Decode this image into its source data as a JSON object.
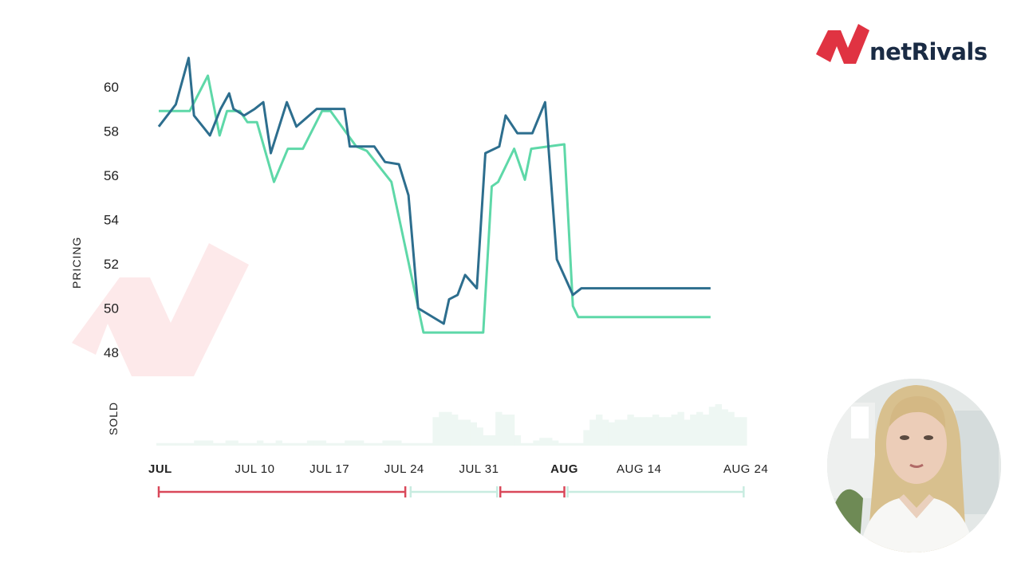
{
  "logo": {
    "text": "netRivals",
    "mark": "netrivals-n-logo",
    "mark_color": "#e03342",
    "text_color": "#1a2b44"
  },
  "presenter": {
    "icon": "presenter-video-avatar"
  },
  "colors": {
    "series_1": "#2d6e8e",
    "series_2": "#5ed8a8",
    "sold_bars": "#eef7f3",
    "range_red": "#d9485a",
    "range_green": "#c8ece0",
    "watermark": "#fde9ea"
  },
  "chart_data": {
    "type": "line",
    "ylabel": "PRICING",
    "ylim": [
      47.5,
      61
    ],
    "yticks": [
      48,
      50,
      52,
      54,
      56,
      58,
      60
    ],
    "xlim": [
      0,
      55
    ],
    "xticks": [
      {
        "label": "JUL",
        "x": 0,
        "bold": true
      },
      {
        "label": "JUL 10",
        "x": 9,
        "bold": false
      },
      {
        "label": "JUL 17",
        "x": 16,
        "bold": false
      },
      {
        "label": "JUL 24",
        "x": 23,
        "bold": false
      },
      {
        "label": "JUL 31",
        "x": 30,
        "bold": false
      },
      {
        "label": "AUG",
        "x": 38,
        "bold": true
      },
      {
        "label": "AUG 14",
        "x": 45,
        "bold": false
      },
      {
        "label": "AUG 24",
        "x": 55,
        "bold": false
      }
    ],
    "grid": false,
    "series": [
      {
        "color": "#2d6e8e",
        "points": [
          [
            0,
            58.2
          ],
          [
            1.6,
            59.2
          ],
          [
            2.8,
            61.3
          ],
          [
            3.3,
            58.7
          ],
          [
            4.8,
            57.8
          ],
          [
            5.8,
            59.0
          ],
          [
            6.6,
            59.7
          ],
          [
            7.0,
            59.0
          ],
          [
            8.0,
            58.7
          ],
          [
            9.0,
            59.0
          ],
          [
            9.8,
            59.3
          ],
          [
            10.5,
            57.0
          ],
          [
            12.0,
            59.3
          ],
          [
            12.9,
            58.2
          ],
          [
            14.8,
            59.0
          ],
          [
            17.4,
            59.0
          ],
          [
            17.9,
            57.3
          ],
          [
            20.2,
            57.3
          ],
          [
            21.2,
            56.6
          ],
          [
            22.5,
            56.5
          ],
          [
            23.4,
            55.1
          ],
          [
            24.3,
            50.0
          ],
          [
            26.7,
            49.3
          ],
          [
            27.2,
            50.4
          ],
          [
            28.0,
            50.6
          ],
          [
            28.7,
            51.5
          ],
          [
            29.8,
            50.9
          ],
          [
            30.6,
            57.0
          ],
          [
            31.9,
            57.3
          ],
          [
            32.5,
            58.7
          ],
          [
            33.6,
            57.9
          ],
          [
            35.0,
            57.9
          ],
          [
            36.2,
            59.3
          ],
          [
            37.3,
            52.2
          ],
          [
            38.8,
            50.6
          ],
          [
            39.6,
            50.9
          ],
          [
            51.7,
            50.9
          ]
        ]
      },
      {
        "color": "#5ed8a8",
        "points": [
          [
            0,
            58.9
          ],
          [
            2.9,
            58.9
          ],
          [
            4.6,
            60.5
          ],
          [
            5.7,
            57.8
          ],
          [
            6.4,
            58.9
          ],
          [
            7.6,
            58.9
          ],
          [
            8.3,
            58.4
          ],
          [
            9.2,
            58.4
          ],
          [
            10.8,
            55.7
          ],
          [
            12.1,
            57.2
          ],
          [
            13.5,
            57.2
          ],
          [
            15.3,
            58.9
          ],
          [
            16.1,
            58.9
          ],
          [
            18.5,
            57.3
          ],
          [
            19.5,
            57.1
          ],
          [
            21.8,
            55.7
          ],
          [
            24.8,
            48.9
          ],
          [
            30.4,
            48.9
          ],
          [
            31.2,
            55.5
          ],
          [
            31.8,
            55.7
          ],
          [
            33.3,
            57.2
          ],
          [
            34.3,
            55.8
          ],
          [
            34.9,
            57.2
          ],
          [
            38.0,
            57.4
          ],
          [
            38.8,
            50.1
          ],
          [
            39.3,
            49.6
          ],
          [
            51.7,
            49.6
          ]
        ]
      }
    ],
    "sold": {
      "ylabel": "SOLD",
      "values": [
        1,
        1,
        1,
        1,
        1,
        1,
        2,
        2,
        2,
        1,
        1,
        2,
        2,
        1,
        1,
        1,
        2,
        1,
        1,
        2,
        1,
        1,
        1,
        1,
        2,
        2,
        2,
        1,
        1,
        1,
        2,
        2,
        2,
        1,
        1,
        1,
        2,
        2,
        2,
        1,
        1,
        1,
        1,
        1,
        11,
        13,
        13,
        12,
        10,
        10,
        9,
        7,
        4,
        4,
        13,
        12,
        12,
        4,
        1,
        1,
        2,
        3,
        3,
        2,
        1,
        1,
        1,
        1,
        6,
        10,
        12,
        10,
        9,
        10,
        10,
        12,
        11,
        11,
        11,
        12,
        11,
        11,
        12,
        13,
        10,
        12,
        13,
        12,
        15,
        16,
        14,
        13,
        11,
        11
      ]
    },
    "ranges": [
      {
        "x0": 0,
        "x1": 23.1,
        "color": "#d9485a"
      },
      {
        "x0": 23.6,
        "x1": 31.7,
        "color": "#c8ece0"
      },
      {
        "x0": 32.0,
        "x1": 38.0,
        "color": "#d9485a"
      },
      {
        "x0": 38.3,
        "x1": 54.8,
        "color": "#c8ece0"
      }
    ]
  }
}
